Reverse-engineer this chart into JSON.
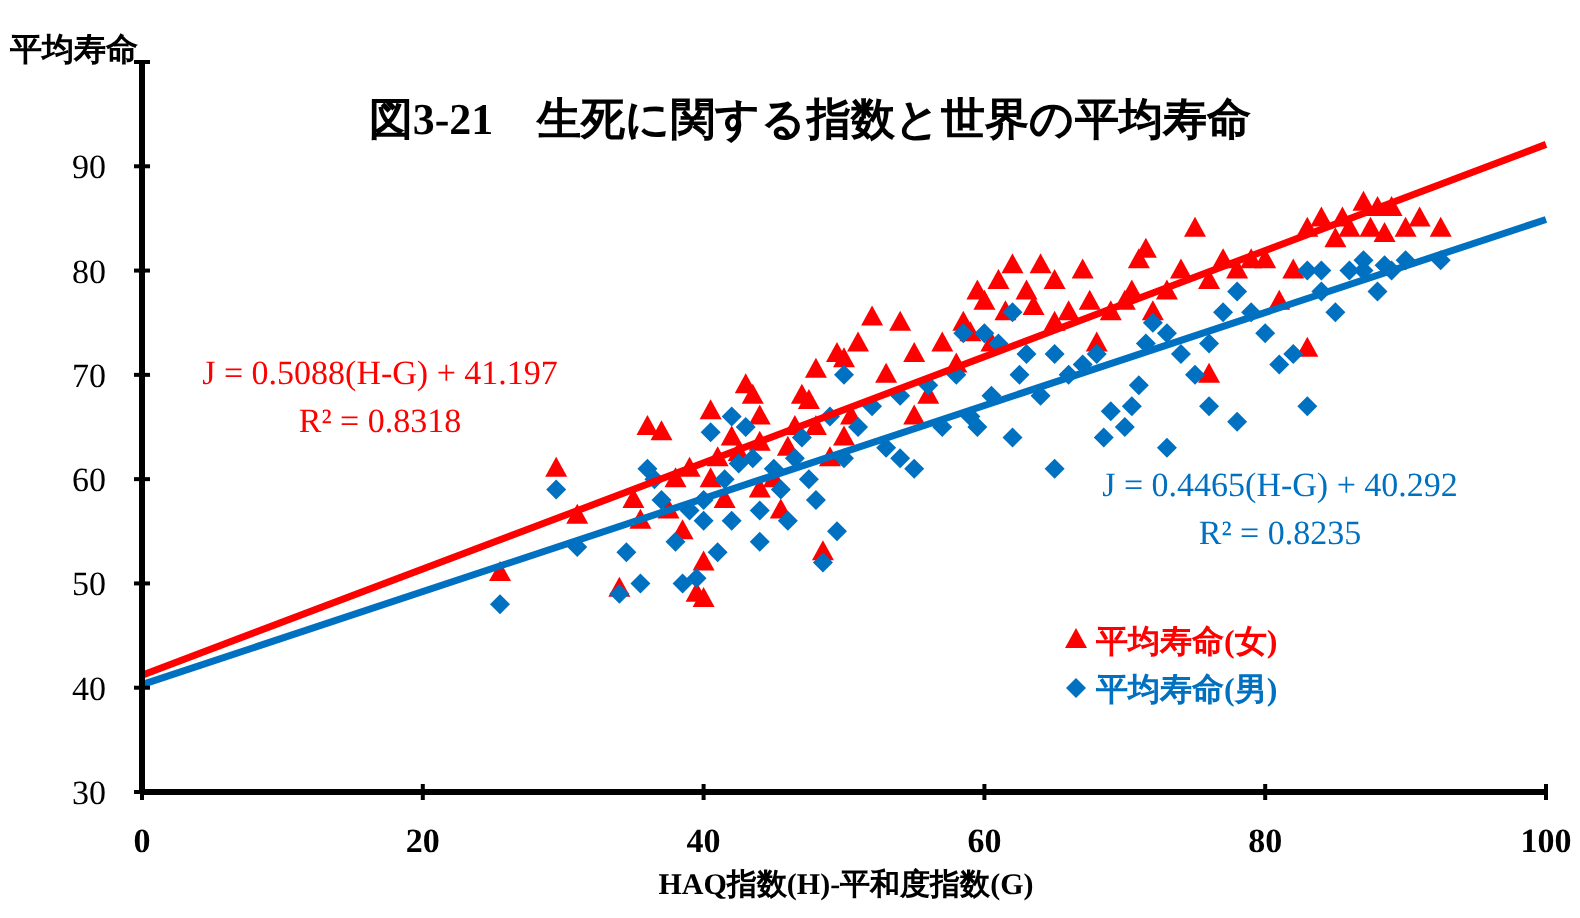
{
  "chart_data": {
    "type": "scatter",
    "title": "図3-21　生死に関する指数と世界の平均寿命",
    "xlabel": "HAQ指数(H)-平和度指数(G)",
    "ylabel": "平均寿命",
    "xlim": [
      0,
      100
    ],
    "ylim": [
      30,
      100
    ],
    "xticks": [
      0,
      20,
      40,
      60,
      80,
      100
    ],
    "yticks": [
      30,
      40,
      50,
      60,
      70,
      80,
      90,
      {
        "value": 100,
        "label": null
      }
    ],
    "grid": false,
    "legend": "right",
    "annotations": [
      "J = 0.5088(H-G) + 41.197\nR² = 0.8318",
      "J = 0.4465(H-G) + 40.292\nR² = 0.8235"
    ],
    "series": [
      {
        "name": "平均寿命(女)",
        "color": "#ff0000",
        "marker": "triangle",
        "x": [
          25.5,
          29.5,
          31,
          34,
          35,
          35.5,
          36,
          37,
          37.5,
          38,
          38.5,
          39,
          39.5,
          40,
          40,
          40.5,
          40.5,
          41,
          41.5,
          42,
          42.5,
          43,
          43.5,
          44,
          44,
          45,
          45.5,
          46,
          46.5,
          47,
          47.5,
          48,
          48,
          48.5,
          49,
          49.5,
          50,
          50,
          50.5,
          51,
          52,
          53,
          54,
          55,
          56,
          57,
          58,
          58.5,
          59,
          59.5,
          60,
          60.5,
          61,
          61.5,
          62,
          63,
          63.5,
          64,
          65,
          66,
          67,
          67.5,
          68,
          69,
          70,
          70.5,
          71,
          71.5,
          72,
          73,
          74,
          75,
          76,
          77,
          78,
          79,
          80,
          81,
          82,
          83,
          84,
          85,
          85.5,
          86,
          87,
          87.5,
          88,
          88.5,
          89,
          90,
          91,
          92.5,
          83,
          76,
          65,
          55,
          44
        ],
        "values": [
          51,
          61,
          56.5,
          49.5,
          58,
          56,
          65,
          64.5,
          57,
          60,
          55,
          61,
          49,
          52,
          48.5,
          66.5,
          60,
          62,
          58,
          64,
          62.5,
          69,
          68,
          63.5,
          59,
          60,
          57,
          63,
          65,
          68,
          67.5,
          70.5,
          65,
          53,
          62,
          72,
          71.5,
          64,
          66,
          73,
          75.5,
          70,
          75,
          72,
          68,
          73,
          71,
          75,
          74,
          78,
          77,
          73,
          79,
          76,
          80.5,
          78,
          76.5,
          80.5,
          79,
          76,
          80,
          77,
          73,
          76,
          77,
          78,
          81,
          82,
          76,
          78,
          80,
          84,
          79,
          81,
          80,
          81,
          81,
          77,
          80,
          84,
          85,
          83,
          85,
          84,
          86.5,
          84,
          86,
          83.5,
          86,
          84,
          85,
          84,
          72.5,
          70,
          75,
          66,
          66
        ]
      },
      {
        "name": "平均寿命(男)",
        "color": "#0070c0",
        "marker": "diamond",
        "x": [
          25.5,
          29.5,
          31,
          34,
          34.5,
          35.5,
          36,
          36.5,
          37,
          38,
          38.5,
          39,
          39.5,
          40,
          40,
          40.5,
          41,
          41.5,
          42,
          42,
          42.5,
          43,
          43.5,
          44,
          44,
          45,
          45.5,
          46,
          46.5,
          47,
          47.5,
          48,
          48.5,
          49,
          49.5,
          50,
          50,
          51,
          52,
          53,
          54,
          55,
          56,
          57,
          58,
          58.5,
          59,
          59.5,
          60,
          60.5,
          61,
          62,
          62.5,
          63,
          64,
          65,
          66,
          67,
          68,
          68.5,
          69,
          70,
          70.5,
          71,
          71.5,
          72,
          73,
          74,
          75,
          76,
          77,
          78,
          79,
          80,
          81,
          82,
          83,
          84,
          85,
          86,
          87,
          88,
          88.5,
          89,
          90,
          92.5,
          83,
          76,
          78,
          73,
          65,
          54,
          62,
          87,
          84
        ],
        "values": [
          48,
          59,
          53.5,
          49,
          53,
          50,
          61,
          60,
          58,
          54,
          50,
          57,
          50.5,
          56,
          58,
          64.5,
          53,
          60,
          66,
          56,
          61.5,
          65,
          62,
          57,
          54,
          61,
          59,
          56,
          62,
          64,
          60,
          58,
          52,
          66,
          55,
          62,
          70,
          65,
          67,
          63,
          68,
          61,
          69,
          65,
          70,
          74,
          66,
          65,
          74,
          68,
          73,
          76,
          70,
          72,
          68,
          72,
          70,
          71,
          72,
          64,
          66.5,
          65,
          67,
          69,
          73,
          75,
          74,
          72,
          70,
          73,
          76,
          78,
          76,
          74,
          71,
          72,
          80,
          78,
          76,
          80,
          80,
          78,
          80.5,
          80,
          81,
          81,
          67,
          67,
          65.5,
          63,
          61,
          62,
          64,
          81,
          80
        ]
      },
      {
        "type": "line",
        "color": "#ff0000",
        "marker": "none",
        "x": [
          0,
          100
        ],
        "values": [
          41.2,
          92.1
        ]
      },
      {
        "type": "line",
        "color": "#0070c0",
        "marker": "none",
        "x": [
          0,
          100
        ],
        "values": [
          40.3,
          84.9
        ]
      }
    ]
  }
}
